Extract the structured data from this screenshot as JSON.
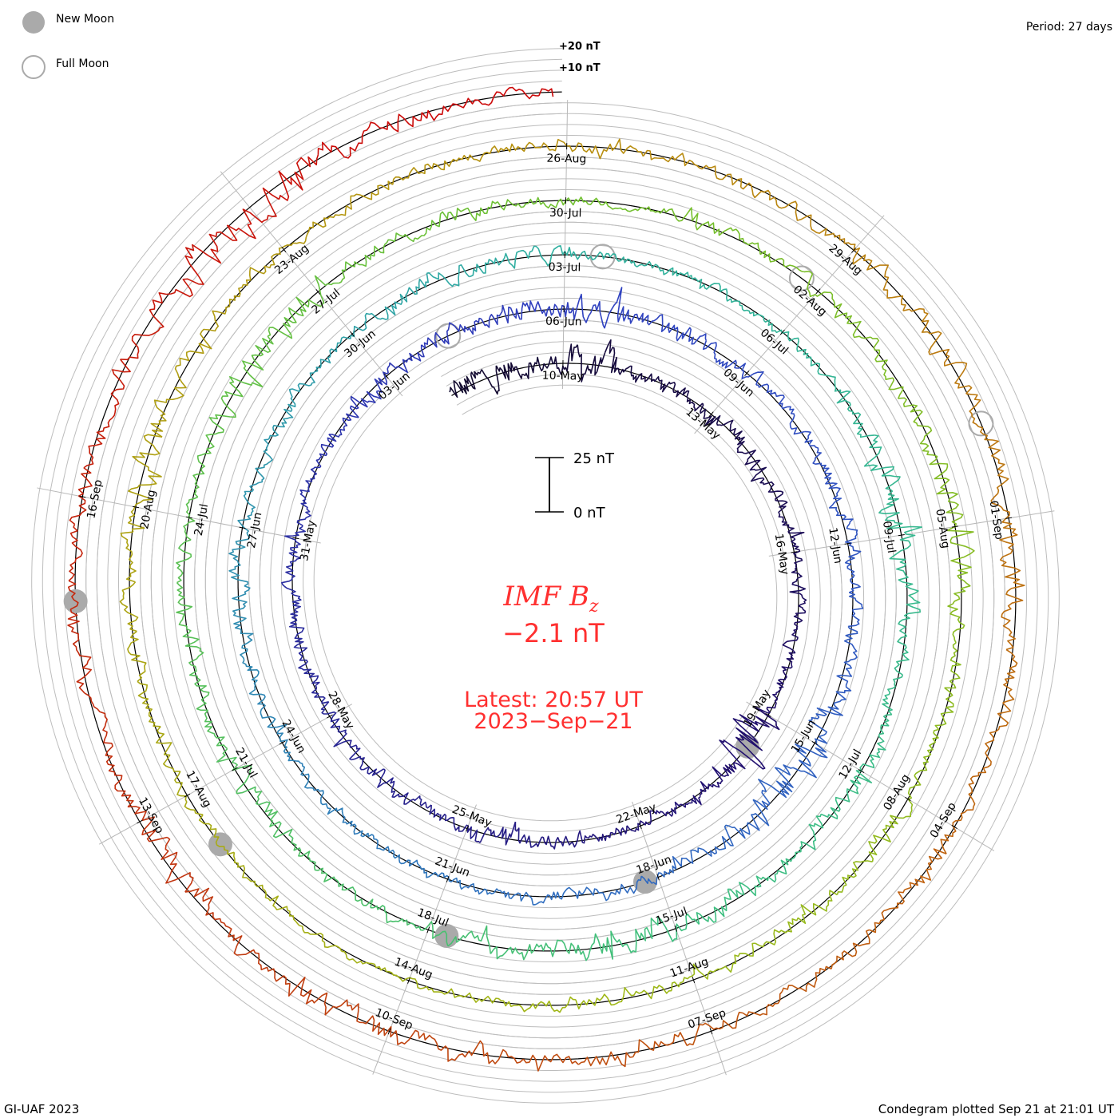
{
  "legend": {
    "new_moon": "New Moon",
    "full_moon": "Full Moon"
  },
  "period_label": "Period: 27 days",
  "footer": {
    "left": "GI-UAF 2023",
    "right": "Condegram plotted Sep 21 at 21:01 UT"
  },
  "center": {
    "title": "IMF B",
    "subscript": "z",
    "value": "−2.1 nT",
    "latest": "Latest: 20:57 UT",
    "date": "2023−Sep−21"
  },
  "scale_bar": {
    "top_label": "25 nT",
    "bottom_label": "0 nT"
  },
  "axis_labels": {
    "plus10": "+10 nT",
    "plus20": "+20 nT"
  },
  "chart_data": {
    "type": "line",
    "subtype": "spiral condegram",
    "title": "IMF Bz",
    "unit": "nT",
    "period_days": 27,
    "start": "2023-05-07T18:00",
    "end": "2023-09-21T20:57",
    "latest_value": -2.1,
    "grid_step_nT": 5,
    "daily_amplitude_nT_from_May07": [
      9,
      9,
      6,
      11,
      4,
      4,
      6,
      5,
      4,
      4,
      4,
      3,
      14,
      6,
      4,
      4,
      4,
      5,
      4,
      5,
      5,
      4,
      4,
      4,
      4,
      4,
      6,
      5,
      5,
      6,
      8,
      5,
      6,
      4,
      4,
      5,
      4,
      4,
      7,
      12,
      8,
      4,
      4,
      4,
      3,
      3,
      3,
      3,
      4,
      6,
      5,
      4,
      4,
      3,
      4,
      5,
      5,
      3,
      3,
      3,
      3,
      5,
      8,
      7,
      4,
      5,
      6,
      5,
      6,
      8,
      6,
      5,
      3,
      3,
      6,
      5,
      6,
      4,
      4,
      7,
      6,
      4,
      5,
      4,
      3,
      4,
      4,
      5,
      5,
      6,
      7,
      4,
      4,
      6,
      5,
      4,
      4,
      4,
      3,
      3,
      3,
      3,
      4,
      5,
      5,
      8,
      5,
      4,
      4,
      4,
      3,
      4,
      4,
      4,
      5,
      6,
      6,
      7,
      5,
      4,
      5,
      5,
      4,
      5,
      5,
      6,
      6,
      5,
      8,
      5,
      5,
      5,
      5,
      6,
      12,
      10,
      5,
      4
    ],
    "date_labels": [
      "10-May",
      "13-May",
      "16-May",
      "19-May",
      "22-May",
      "25-May",
      "28-May",
      "31-May",
      "03-Jun",
      "06-Jun",
      "09-Jun",
      "12-Jun",
      "15-Jun",
      "18-Jun",
      "21-Jun",
      "24-Jun",
      "27-Jun",
      "30-Jun",
      "03-Jul",
      "06-Jul",
      "09-Jul",
      "12-Jul",
      "15-Jul",
      "18-Jul",
      "21-Jul",
      "24-Jul",
      "27-Jul",
      "30-Jul",
      "02-Aug",
      "05-Aug",
      "08-Aug",
      "11-Aug",
      "14-Aug",
      "17-Aug",
      "20-Aug",
      "23-Aug",
      "26-Aug",
      "29-Aug",
      "01-Sep",
      "04-Sep",
      "07-Sep",
      "10-Sep",
      "13-Sep",
      "16-Sep"
    ],
    "new_moons": [
      "2023-05-19T15:53",
      "2023-06-18T04:37",
      "2023-07-17T18:32",
      "2023-08-16T09:38",
      "2023-09-15T01:40"
    ],
    "full_moons": [
      "2023-06-04T03:42",
      "2023-07-03T11:39",
      "2023-08-01T18:32",
      "2023-08-31T01:36"
    ],
    "color_stops": [
      {
        "date": "2023-05-07",
        "color": "#100828"
      },
      {
        "date": "2023-05-20",
        "color": "#221070"
      },
      {
        "date": "2023-06-06",
        "color": "#3040c0"
      },
      {
        "date": "2023-06-20",
        "color": "#3070c0"
      },
      {
        "date": "2023-07-03",
        "color": "#30b0a0"
      },
      {
        "date": "2023-07-15",
        "color": "#40c080"
      },
      {
        "date": "2023-07-30",
        "color": "#70c030"
      },
      {
        "date": "2023-08-12",
        "color": "#a0b818"
      },
      {
        "date": "2023-08-26",
        "color": "#b89010"
      },
      {
        "date": "2023-09-05",
        "color": "#c06010"
      },
      {
        "date": "2023-09-12",
        "color": "#c03810"
      },
      {
        "date": "2023-09-21",
        "color": "#cc0808"
      }
    ]
  }
}
